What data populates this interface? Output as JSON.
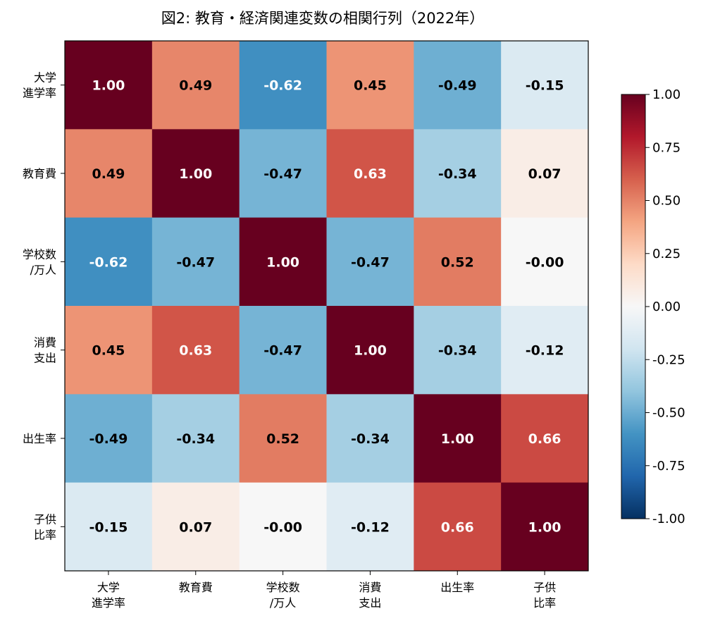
{
  "chart_data": {
    "type": "heatmap",
    "title": "図2: 教育・経済関連変数の相関行列（2022年）",
    "x_labels": [
      "大学\n進学率",
      "教育費",
      "学校数\n/万人",
      "消費\n支出",
      "出生率",
      "子供\n比率"
    ],
    "y_labels": [
      "大学\n進学率",
      "教育費",
      "学校数\n/万人",
      "消費\n支出",
      "出生率",
      "子供\n比率"
    ],
    "values": [
      [
        1.0,
        0.49,
        -0.62,
        0.45,
        -0.49,
        -0.15
      ],
      [
        0.49,
        1.0,
        -0.47,
        0.63,
        -0.34,
        0.07
      ],
      [
        -0.62,
        -0.47,
        1.0,
        -0.47,
        0.52,
        -0.0
      ],
      [
        0.45,
        0.63,
        -0.47,
        1.0,
        -0.34,
        -0.12
      ],
      [
        -0.49,
        -0.34,
        0.52,
        -0.34,
        1.0,
        0.66
      ],
      [
        -0.15,
        0.07,
        -0.0,
        -0.12,
        0.66,
        1.0
      ]
    ],
    "value_labels": [
      [
        "1.00",
        "0.49",
        "-0.62",
        "0.45",
        "-0.49",
        "-0.15"
      ],
      [
        "0.49",
        "1.00",
        "-0.47",
        "0.63",
        "-0.34",
        "0.07"
      ],
      [
        "-0.62",
        "-0.47",
        "1.00",
        "-0.47",
        "0.52",
        "-0.00"
      ],
      [
        "0.45",
        "0.63",
        "-0.47",
        "1.00",
        "-0.34",
        "-0.12"
      ],
      [
        "-0.49",
        "-0.34",
        "0.52",
        "-0.34",
        "1.00",
        "0.66"
      ],
      [
        "-0.15",
        "0.07",
        "-0.00",
        "-0.12",
        "0.66",
        "1.00"
      ]
    ],
    "colormap": "RdBu_r",
    "vmin": -1.0,
    "vmax": 1.0,
    "colorbar_ticks": [
      "1.00",
      "0.75",
      "0.50",
      "0.25",
      "0.00",
      "-0.25",
      "-0.50",
      "-0.75",
      "-1.00"
    ],
    "colorbar_tick_values": [
      1.0,
      0.75,
      0.5,
      0.25,
      0.0,
      -0.25,
      -0.5,
      -0.75,
      -1.0
    ],
    "colorbar_placement": "right"
  }
}
